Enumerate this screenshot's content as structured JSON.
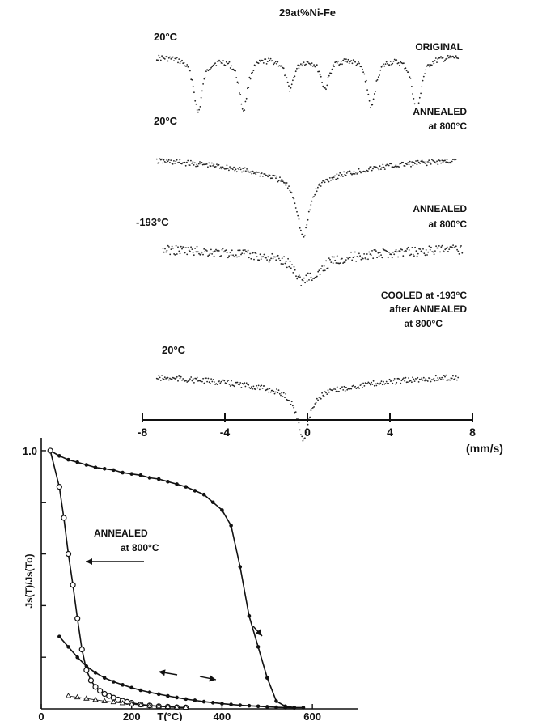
{
  "chart_data": [
    {
      "type": "scatter",
      "subtype": "mossbauer-spectra",
      "title": "29at%Ni-Fe",
      "x_axis": {
        "label": "(mm/s)",
        "range": [
          -8,
          8
        ],
        "ticks": [
          -8,
          -4,
          0,
          4,
          8
        ],
        "tick_labels": [
          "-8",
          "-4",
          "0",
          "4",
          "8"
        ]
      },
      "grid": false,
      "spectra": [
        {
          "temperature": "20°C",
          "condition": [
            "ORIGINAL"
          ],
          "peaks_mm_s": [
            -5.3,
            -3.1,
            -0.85,
            0.85,
            3.1,
            5.3
          ],
          "relative_depths": [
            1.0,
            0.95,
            0.55,
            0.55,
            0.9,
            1.0
          ]
        },
        {
          "temperature": "20°C",
          "condition": [
            "ANNEALED",
            "at 800°C"
          ],
          "peaks_mm_s": [
            -0.2
          ],
          "relative_depths": [
            1.0
          ]
        },
        {
          "temperature": "-193°C",
          "condition": [
            "ANNEALED",
            "at 800°C"
          ],
          "peaks_mm_s": [
            -0.3,
            0.4
          ],
          "relative_depths": [
            0.7,
            0.6
          ]
        },
        {
          "temperature": "20°C",
          "condition": [
            "COOLED at -193°C",
            "after ANNEALED",
            "at 800°C"
          ],
          "peaks_mm_s": [
            -0.2
          ],
          "relative_depths": [
            1.0
          ]
        }
      ]
    },
    {
      "type": "line",
      "xlabel": "T(°C)",
      "ylabel": "Js(T)/Js(To)",
      "xlim": [
        0,
        700
      ],
      "ylim": [
        0,
        1.05
      ],
      "x_ticks": [
        0,
        200,
        400,
        600
      ],
      "x_tick_labels": [
        "0",
        "200",
        "400",
        "600"
      ],
      "y_ticks": [
        0.2,
        0.4,
        0.6,
        0.8,
        1.0
      ],
      "y_tick_labels": [
        "",
        "",
        "",
        "",
        "1.0"
      ],
      "grid": false,
      "annotations": [
        "ANNEALED",
        "at 800°C"
      ],
      "series": [
        {
          "marker": "dot",
          "x": [
            20,
            40,
            60,
            80,
            100,
            120,
            140,
            160,
            180,
            200,
            220,
            240,
            260,
            280,
            300,
            320,
            340,
            360,
            380,
            400,
            420,
            440,
            460,
            480,
            500,
            520,
            540,
            560,
            580
          ],
          "y": [
            1.0,
            0.98,
            0.965,
            0.955,
            0.945,
            0.935,
            0.93,
            0.925,
            0.915,
            0.91,
            0.905,
            0.895,
            0.89,
            0.88,
            0.87,
            0.86,
            0.845,
            0.83,
            0.8,
            0.77,
            0.71,
            0.55,
            0.36,
            0.24,
            0.12,
            0.03,
            0.01,
            0.005,
            0.005
          ]
        },
        {
          "marker": "circle",
          "x": [
            20,
            40,
            50,
            60,
            70,
            80,
            90,
            100,
            110,
            120,
            130,
            140,
            150,
            160,
            170,
            180,
            190,
            200,
            220,
            240,
            260,
            280,
            300,
            320
          ],
          "y": [
            1.0,
            0.86,
            0.74,
            0.6,
            0.48,
            0.35,
            0.23,
            0.15,
            0.11,
            0.085,
            0.07,
            0.058,
            0.05,
            0.043,
            0.036,
            0.031,
            0.027,
            0.023,
            0.017,
            0.013,
            0.01,
            0.008,
            0.006,
            0.005
          ]
        },
        {
          "marker": "dot",
          "x": [
            40,
            60,
            80,
            100,
            120,
            140,
            160,
            180,
            200,
            220,
            240,
            260,
            280,
            300,
            320,
            340,
            360,
            380,
            400,
            420,
            440,
            460,
            480,
            500,
            520,
            540,
            560
          ],
          "y": [
            0.28,
            0.24,
            0.2,
            0.165,
            0.14,
            0.12,
            0.105,
            0.093,
            0.082,
            0.072,
            0.064,
            0.057,
            0.05,
            0.044,
            0.038,
            0.033,
            0.028,
            0.024,
            0.02,
            0.017,
            0.014,
            0.012,
            0.01,
            0.008,
            0.006,
            0.005,
            0.004
          ]
        },
        {
          "marker": "triangle",
          "x": [
            60,
            80,
            100,
            120,
            140,
            160,
            180,
            200,
            220,
            240,
            260,
            280,
            300,
            320
          ],
          "y": [
            0.05,
            0.045,
            0.04,
            0.035,
            0.03,
            0.026,
            0.022,
            0.018,
            0.015,
            0.012,
            0.01,
            0.008,
            0.006,
            0.005
          ]
        }
      ]
    }
  ]
}
